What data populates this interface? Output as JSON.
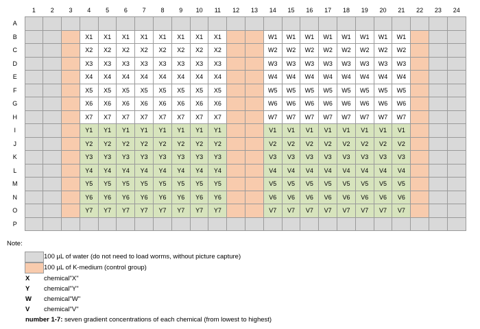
{
  "columns": [
    1,
    2,
    3,
    4,
    5,
    6,
    7,
    8,
    9,
    10,
    11,
    12,
    13,
    14,
    15,
    16,
    17,
    18,
    19,
    20,
    21,
    22,
    23,
    24
  ],
  "rows": [
    {
      "label": "A",
      "cells": [
        null,
        null,
        null,
        null,
        null,
        null,
        null,
        null,
        null,
        null,
        null,
        null,
        null,
        null,
        null,
        null,
        null,
        null,
        null,
        null,
        null,
        null,
        null,
        null
      ]
    },
    {
      "label": "B",
      "cells": [
        null,
        null,
        null,
        "X1",
        "X1",
        "X1",
        "X1",
        "X1",
        "X1",
        "X1",
        "X1",
        null,
        null,
        "W1",
        "W1",
        "W1",
        "W1",
        "W1",
        "W1",
        "W1",
        "W1",
        null,
        null,
        null
      ]
    },
    {
      "label": "C",
      "cells": [
        null,
        null,
        null,
        "X2",
        "X2",
        "X2",
        "X2",
        "X2",
        "X2",
        "X2",
        "X2",
        null,
        null,
        "W2",
        "W2",
        "W2",
        "W2",
        "W2",
        "W2",
        "W2",
        "W2",
        null,
        null,
        null
      ]
    },
    {
      "label": "D",
      "cells": [
        null,
        null,
        null,
        "X3",
        "X3",
        "X3",
        "X3",
        "X3",
        "X3",
        "X3",
        "X3",
        null,
        null,
        "W3",
        "W3",
        "W3",
        "W3",
        "W3",
        "W3",
        "W3",
        "W3",
        null,
        null,
        null
      ]
    },
    {
      "label": "E",
      "cells": [
        null,
        null,
        null,
        "X4",
        "X4",
        "X4",
        "X4",
        "X4",
        "X4",
        "X4",
        "X4",
        null,
        null,
        "W4",
        "W4",
        "W4",
        "W4",
        "W4",
        "W4",
        "W4",
        "W4",
        null,
        null,
        null
      ]
    },
    {
      "label": "F",
      "cells": [
        null,
        null,
        null,
        "X5",
        "X5",
        "X5",
        "X5",
        "X5",
        "X5",
        "X5",
        "X5",
        null,
        null,
        "W5",
        "W5",
        "W5",
        "W5",
        "W5",
        "W5",
        "W5",
        "W5",
        null,
        null,
        null
      ]
    },
    {
      "label": "G",
      "cells": [
        null,
        null,
        null,
        "X6",
        "X6",
        "X6",
        "X6",
        "X6",
        "X6",
        "X6",
        "X6",
        null,
        null,
        "W6",
        "W6",
        "W6",
        "W6",
        "W6",
        "W6",
        "W6",
        "W6",
        null,
        null,
        null
      ]
    },
    {
      "label": "H",
      "cells": [
        null,
        null,
        null,
        "X7",
        "X7",
        "X7",
        "X7",
        "X7",
        "X7",
        "X7",
        "X7",
        null,
        null,
        "W7",
        "W7",
        "W7",
        "W7",
        "W7",
        "W7",
        "W7",
        "W7",
        null,
        null,
        null
      ]
    },
    {
      "label": "I",
      "cells": [
        null,
        null,
        null,
        "Y1",
        "Y1",
        "Y1",
        "Y1",
        "Y1",
        "Y1",
        "Y1",
        "Y1",
        null,
        null,
        "V1",
        "V1",
        "V1",
        "V1",
        "V1",
        "V1",
        "V1",
        "V1",
        null,
        null,
        null
      ]
    },
    {
      "label": "J",
      "cells": [
        null,
        null,
        null,
        "Y2",
        "Y2",
        "Y2",
        "Y2",
        "Y2",
        "Y2",
        "Y2",
        "Y2",
        null,
        null,
        "V2",
        "V2",
        "V2",
        "V2",
        "V2",
        "V2",
        "V2",
        "V2",
        null,
        null,
        null
      ]
    },
    {
      "label": "K",
      "cells": [
        null,
        null,
        null,
        "Y3",
        "Y3",
        "Y3",
        "Y3",
        "Y3",
        "Y3",
        "Y3",
        "Y3",
        null,
        null,
        "V3",
        "V3",
        "V3",
        "V3",
        "V3",
        "V3",
        "V3",
        "V3",
        null,
        null,
        null
      ]
    },
    {
      "label": "L",
      "cells": [
        null,
        null,
        null,
        "Y4",
        "Y4",
        "Y4",
        "Y4",
        "Y4",
        "Y4",
        "Y4",
        "Y4",
        null,
        null,
        "V4",
        "V4",
        "V4",
        "V4",
        "V4",
        "V4",
        "V4",
        "V4",
        null,
        null,
        null
      ]
    },
    {
      "label": "M",
      "cells": [
        null,
        null,
        null,
        "Y5",
        "Y5",
        "Y5",
        "Y5",
        "Y5",
        "Y5",
        "Y5",
        "Y5",
        null,
        null,
        "V5",
        "V5",
        "V5",
        "V5",
        "V5",
        "V5",
        "V5",
        "V5",
        null,
        null,
        null
      ]
    },
    {
      "label": "N",
      "cells": [
        null,
        null,
        null,
        "Y6",
        "Y6",
        "Y6",
        "Y6",
        "Y6",
        "Y6",
        "Y6",
        "Y6",
        null,
        null,
        "V6",
        "V6",
        "V6",
        "V6",
        "V6",
        "V6",
        "V6",
        "V6",
        null,
        null,
        null
      ]
    },
    {
      "label": "O",
      "cells": [
        null,
        null,
        null,
        "Y7",
        "Y7",
        "Y7",
        "Y7",
        "Y7",
        "Y7",
        "Y7",
        "Y7",
        null,
        null,
        "V7",
        "V7",
        "V7",
        "V7",
        "V7",
        "V7",
        "V7",
        "V7",
        null,
        null,
        null
      ]
    },
    {
      "label": "P",
      "cells": [
        null,
        null,
        null,
        null,
        null,
        null,
        null,
        null,
        null,
        null,
        null,
        null,
        null,
        null,
        null,
        null,
        null,
        null,
        null,
        null,
        null,
        null,
        null,
        null
      ]
    }
  ],
  "note": {
    "title": "Note:",
    "legend": [
      {
        "text": "100 µL of water (do not need to load worms, without picture capture)"
      },
      {
        "text": "100 µL of K-medium (control group)"
      }
    ],
    "definitions": [
      {
        "term": "X",
        "text": "chemical\"X\""
      },
      {
        "term": "Y",
        "text": "chemical\"Y\""
      },
      {
        "term": "W",
        "text": "chemical\"W\""
      },
      {
        "term": "V",
        "text": "chemical\"V\""
      },
      {
        "term": "number 1-7:",
        "text": "seven gradient concentrations of each chemical (from lowest to highest)"
      }
    ]
  }
}
